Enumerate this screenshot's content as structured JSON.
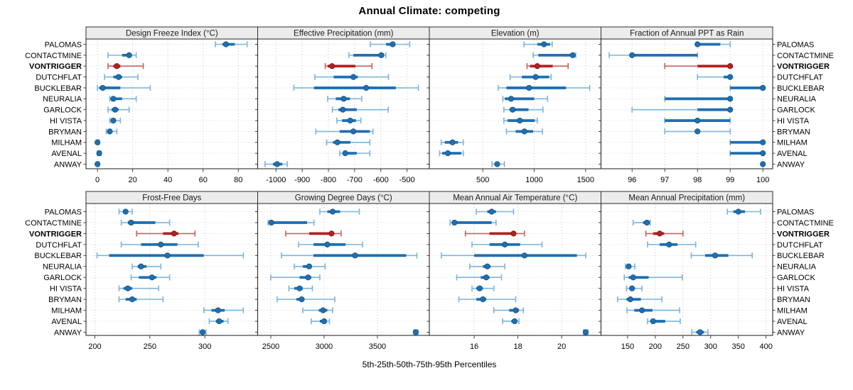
{
  "title": "Annual Climate: competing",
  "footer": "5th-25th-50th-75th-95th Percentiles",
  "highlight_row": "VONTRIGGER",
  "rows": [
    "PALOMAS",
    "CONTACTMINE",
    "VONTRIGGER",
    "DUTCHFLAT",
    "BUCKLEBAR",
    "NEURALIA",
    "GARLOCK",
    "HI VISTA",
    "BRYMAN",
    "MILHAM",
    "AVENAL",
    "ANWAY"
  ],
  "colors": {
    "blue": "#1f6fb2",
    "blue_light": "#7db4da",
    "blue_dark": "#14527f",
    "red": "#b22222",
    "red_light": "#cc5f5f",
    "red_dark": "#7c1717",
    "strip_bg": "#ececec",
    "border": "#2f2f2f",
    "grid": "#c9c9c9",
    "row_grid": "#d6d6d6",
    "text": "#000000"
  },
  "chart_data": {
    "type": "trellis-percentile-errorbar",
    "panels_per_row": 4,
    "grid": "dotted",
    "legend_position": "none",
    "percentile_labels": [
      "5th",
      "25th",
      "50th",
      "75th",
      "95th"
    ],
    "panels": [
      {
        "title": "Design Freeze Index (°C)",
        "band": "top",
        "ticks": [
          0,
          20,
          40,
          60,
          80
        ],
        "xlim": [
          -6.5,
          91
        ],
        "values": [
          [
            67,
            71,
            73,
            78,
            85
          ],
          [
            6,
            14,
            18,
            19,
            22
          ],
          [
            6,
            9,
            11,
            13,
            26
          ],
          [
            4,
            9,
            12,
            14,
            23
          ],
          [
            0,
            1,
            3,
            13,
            30
          ],
          [
            7,
            8,
            9,
            14,
            22
          ],
          [
            6,
            8,
            10,
            12,
            18
          ],
          [
            7,
            8,
            9,
            10,
            13
          ],
          [
            5,
            6,
            7,
            8,
            11
          ],
          [
            0,
            0,
            0,
            1,
            1
          ],
          [
            0,
            0,
            1,
            1,
            2
          ],
          [
            0,
            0,
            0,
            1,
            1
          ]
        ]
      },
      {
        "title": "Effective Precipitation (mm)",
        "band": "top",
        "ticks": [
          -1000,
          -900,
          -800,
          -700,
          -600,
          -500
        ],
        "xlim": [
          -1070,
          -415
        ],
        "values": [
          [
            -640,
            -580,
            -555,
            -545,
            -490
          ],
          [
            -722,
            -705,
            -598,
            -593,
            -581
          ],
          [
            -812,
            -803,
            -786,
            -697,
            -634
          ],
          [
            -852,
            -780,
            -705,
            -688,
            -571
          ],
          [
            -932,
            -855,
            -656,
            -543,
            -457
          ],
          [
            -803,
            -772,
            -742,
            -718,
            -673
          ],
          [
            -785,
            -762,
            -745,
            -692,
            -572
          ],
          [
            -768,
            -748,
            -717,
            -695,
            -676
          ],
          [
            -848,
            -757,
            -705,
            -642,
            -630
          ],
          [
            -807,
            -783,
            -766,
            -716,
            -642
          ],
          [
            -757,
            -742,
            -736,
            -692,
            -642
          ],
          [
            -1042,
            -1012,
            -996,
            -976,
            -957
          ]
        ]
      },
      {
        "title": "Elevation (m)",
        "band": "top",
        "ticks": [
          500,
          1000,
          1500
        ],
        "xlim": [
          -20,
          1650
        ],
        "values": [
          [
            900,
            1030,
            1095,
            1155,
            1175
          ],
          [
            990,
            1040,
            1375,
            1390,
            1405
          ],
          [
            930,
            960,
            1030,
            1180,
            1330
          ],
          [
            765,
            880,
            1015,
            1145,
            1165
          ],
          [
            650,
            730,
            950,
            1310,
            1540
          ],
          [
            695,
            715,
            775,
            1000,
            1130
          ],
          [
            705,
            760,
            790,
            945,
            1085
          ],
          [
            705,
            740,
            860,
            1005,
            1030
          ],
          [
            730,
            820,
            905,
            990,
            1080
          ],
          [
            95,
            130,
            205,
            260,
            310
          ],
          [
            80,
            105,
            160,
            290,
            310
          ],
          [
            590,
            615,
            640,
            660,
            710
          ]
        ]
      },
      {
        "title": "Fraction of Annual PPT as Rain",
        "band": "top",
        "ticks": [
          96,
          97,
          98,
          99,
          100
        ],
        "xlim": [
          95.05,
          100.3
        ],
        "values": [
          [
            98,
            98,
            98,
            98.7,
            99
          ],
          [
            95.3,
            96,
            96,
            98,
            98
          ],
          [
            97,
            98,
            99,
            99,
            99
          ],
          [
            98,
            98.8,
            99,
            99,
            99
          ],
          [
            99,
            99,
            100,
            100,
            100
          ],
          [
            97,
            97,
            99,
            99,
            99
          ],
          [
            96,
            98,
            99,
            99,
            99
          ],
          [
            97,
            97,
            98,
            99,
            99
          ],
          [
            97,
            98,
            98,
            98,
            99
          ],
          [
            99,
            99,
            100,
            100,
            100
          ],
          [
            99,
            99,
            100,
            100,
            100
          ],
          [
            100,
            100,
            100,
            100,
            100
          ]
        ]
      },
      {
        "title": "Frost-Free Days",
        "band": "bottom",
        "ticks": [
          200,
          250,
          300
        ],
        "xlim": [
          192,
          348
        ],
        "values": [
          [
            222,
            226,
            228,
            230,
            234
          ],
          [
            224,
            230,
            233,
            255,
            268
          ],
          [
            238,
            262,
            272,
            276,
            291
          ],
          [
            224,
            242,
            260,
            275,
            294
          ],
          [
            202,
            213,
            266,
            299,
            335
          ],
          [
            234,
            239,
            242,
            247,
            260
          ],
          [
            233,
            240,
            252,
            256,
            268
          ],
          [
            222,
            226,
            230,
            234,
            258
          ],
          [
            222,
            228,
            234,
            238,
            262
          ],
          [
            299,
            306,
            312,
            318,
            335
          ],
          [
            304,
            310,
            313,
            317,
            321
          ],
          [
            295,
            297,
            298,
            299,
            301
          ]
        ]
      },
      {
        "title": "Growing Degree Days (°C)",
        "band": "bottom",
        "ticks": [
          2500,
          3000,
          3500
        ],
        "xlim": [
          2377,
          3987
        ],
        "values": [
          [
            2960,
            3030,
            3080,
            3150,
            3330
          ],
          [
            2475,
            2490,
            2505,
            2840,
            2905
          ],
          [
            2640,
            2860,
            3070,
            3090,
            3160
          ],
          [
            2760,
            2900,
            3030,
            3200,
            3360
          ],
          [
            2600,
            2900,
            3290,
            3770,
            3870
          ],
          [
            2720,
            2800,
            2860,
            2885,
            3010
          ],
          [
            2500,
            2770,
            2850,
            2880,
            2960
          ],
          [
            2670,
            2720,
            2770,
            2800,
            2890
          ],
          [
            2560,
            2740,
            2790,
            2815,
            3100
          ],
          [
            2800,
            2950,
            2990,
            3030,
            3080
          ],
          [
            2880,
            2960,
            3000,
            3015,
            3050
          ],
          [
            3840,
            3852,
            3860,
            3868,
            3880
          ]
        ]
      },
      {
        "title": "Mean Annual Air Temperature (°C)",
        "band": "bottom",
        "ticks": [
          16,
          18,
          20
        ],
        "xlim": [
          13.95,
          21.8
        ],
        "values": [
          [
            16.1,
            16.6,
            16.8,
            17.0,
            17.8
          ],
          [
            14.9,
            15.0,
            15.1,
            16.8,
            17.0
          ],
          [
            15.6,
            16.7,
            17.8,
            17.9,
            18.3
          ],
          [
            15.9,
            16.7,
            17.4,
            18.1,
            19.1
          ],
          [
            14.5,
            16.0,
            18.3,
            20.7,
            21.1
          ],
          [
            15.8,
            16.4,
            16.6,
            16.75,
            17.4
          ],
          [
            15.2,
            16.3,
            16.55,
            16.7,
            17.25
          ],
          [
            15.9,
            16.1,
            16.25,
            16.4,
            16.9
          ],
          [
            15.3,
            16.1,
            16.4,
            16.55,
            17.9
          ],
          [
            16.9,
            17.6,
            17.9,
            18.05,
            18.25
          ],
          [
            17.3,
            17.7,
            17.85,
            17.95,
            18.05
          ],
          [
            21.0,
            21.05,
            21.1,
            21.15,
            21.2
          ]
        ]
      },
      {
        "title": "Mean Annual Precipitation (mm)",
        "band": "bottom",
        "ticks": [
          150,
          200,
          250,
          300,
          350,
          400
        ],
        "xlim": [
          102,
          412
        ],
        "values": [
          [
            330,
            341,
            350,
            362,
            390
          ],
          [
            160,
            178,
            185,
            188,
            191
          ],
          [
            183,
            196,
            208,
            216,
            250
          ],
          [
            186,
            208,
            225,
            240,
            273
          ],
          [
            265,
            290,
            308,
            332,
            375
          ],
          [
            146,
            150,
            152,
            156,
            163
          ],
          [
            144,
            152,
            160,
            188,
            249
          ],
          [
            148,
            154,
            158,
            163,
            176
          ],
          [
            132,
            148,
            155,
            174,
            212
          ],
          [
            149,
            162,
            176,
            195,
            244
          ],
          [
            186,
            192,
            196,
            218,
            245
          ],
          [
            266,
            274,
            281,
            288,
            295
          ]
        ]
      }
    ]
  }
}
